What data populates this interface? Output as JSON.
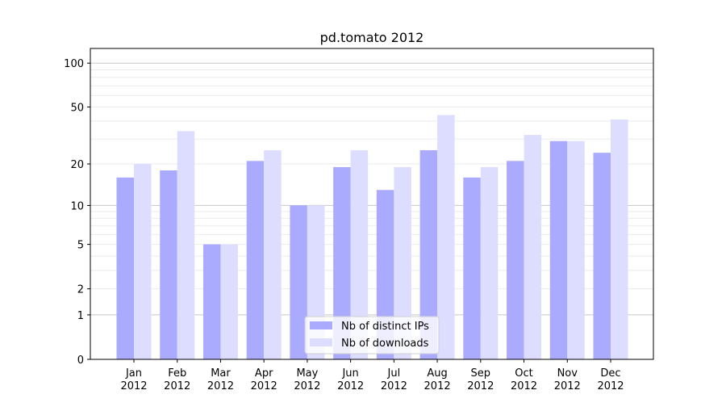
{
  "chart_data": {
    "type": "bar",
    "title": "pd.tomato 2012",
    "xlabel": "",
    "ylabel": "",
    "yscale": "log(1+y)",
    "ylim": [
      0,
      126
    ],
    "yticks": [
      0,
      1,
      2,
      5,
      10,
      20,
      50,
      100
    ],
    "grid": true,
    "legend_position": "lower-center",
    "categories": [
      "Jan\n2012",
      "Feb\n2012",
      "Mar\n2012",
      "Apr\n2012",
      "May\n2012",
      "Jun\n2012",
      "Jul\n2012",
      "Aug\n2012",
      "Sep\n2012",
      "Oct\n2012",
      "Nov\n2012",
      "Dec\n2012"
    ],
    "series": [
      {
        "name": "Nb of distinct IPs",
        "color": "#aaaaff",
        "values": [
          16,
          18,
          5,
          21,
          10,
          19,
          13,
          25,
          16,
          21,
          29,
          24
        ]
      },
      {
        "name": "Nb of downloads",
        "color": "#ddddff",
        "values": [
          20,
          34,
          5,
          25,
          10,
          25,
          19,
          44,
          19,
          32,
          29,
          41
        ]
      }
    ]
  }
}
